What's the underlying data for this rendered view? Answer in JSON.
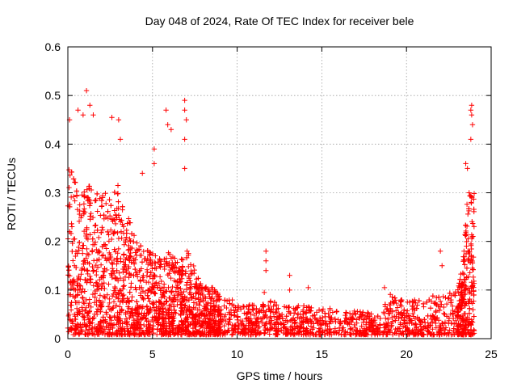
{
  "chart_data": {
    "type": "scatter",
    "title": "Day 048 of 2024, Rate Of TEC Index for receiver bele",
    "xlabel": "GPS time / hours",
    "ylabel": "ROTI / TECUs",
    "xlim": [
      0,
      25
    ],
    "ylim": [
      0,
      0.6
    ],
    "xticks": [
      0,
      5,
      10,
      15,
      20,
      25
    ],
    "yticks": [
      0,
      0.1,
      0.2,
      0.3,
      0.4,
      0.5,
      0.6
    ],
    "xtick_labels": [
      "0",
      "5",
      "10",
      "15",
      "20",
      "25"
    ],
    "ytick_labels": [
      "0",
      "0.1",
      "0.2",
      "0.3",
      "0.4",
      "0.5",
      "0.6"
    ],
    "grid": true,
    "marker": "+",
    "color": "#ff0000",
    "envelope": {
      "description": "approximate upper envelope of ROTI values vs GPS hour",
      "x": [
        0,
        0.3,
        0.6,
        1.0,
        1.3,
        1.7,
        2.0,
        2.5,
        3.0,
        3.5,
        4.0,
        4.5,
        5.0,
        5.5,
        6.0,
        6.5,
        7.0,
        7.5,
        8.0,
        8.5,
        9.0,
        10.0,
        11.0,
        12.0,
        13.0,
        14.0,
        15.0,
        16.0,
        17.0,
        18.0,
        18.5,
        19.0,
        20.0,
        21.0,
        22.0,
        23.0,
        23.3,
        23.6,
        24.0
      ],
      "y": [
        0.38,
        0.33,
        0.3,
        0.3,
        0.32,
        0.3,
        0.3,
        0.28,
        0.32,
        0.25,
        0.2,
        0.18,
        0.17,
        0.16,
        0.17,
        0.15,
        0.18,
        0.14,
        0.1,
        0.1,
        0.08,
        0.07,
        0.06,
        0.07,
        0.06,
        0.06,
        0.055,
        0.055,
        0.05,
        0.045,
        0.04,
        0.09,
        0.07,
        0.08,
        0.08,
        0.09,
        0.14,
        0.3,
        0.3
      ]
    },
    "notable_points": [
      {
        "x": 0.1,
        "y": 0.45
      },
      {
        "x": 0.6,
        "y": 0.47
      },
      {
        "x": 0.9,
        "y": 0.46
      },
      {
        "x": 1.1,
        "y": 0.51
      },
      {
        "x": 1.3,
        "y": 0.48
      },
      {
        "x": 1.5,
        "y": 0.46
      },
      {
        "x": 2.6,
        "y": 0.455
      },
      {
        "x": 3.0,
        "y": 0.45
      },
      {
        "x": 3.1,
        "y": 0.41
      },
      {
        "x": 4.4,
        "y": 0.34
      },
      {
        "x": 5.1,
        "y": 0.39
      },
      {
        "x": 5.1,
        "y": 0.36
      },
      {
        "x": 5.8,
        "y": 0.47
      },
      {
        "x": 5.9,
        "y": 0.44
      },
      {
        "x": 6.1,
        "y": 0.43
      },
      {
        "x": 6.9,
        "y": 0.49
      },
      {
        "x": 6.9,
        "y": 0.47
      },
      {
        "x": 7.0,
        "y": 0.45
      },
      {
        "x": 6.9,
        "y": 0.41
      },
      {
        "x": 6.9,
        "y": 0.35
      },
      {
        "x": 11.7,
        "y": 0.18
      },
      {
        "x": 11.7,
        "y": 0.16
      },
      {
        "x": 11.7,
        "y": 0.14
      },
      {
        "x": 11.6,
        "y": 0.095
      },
      {
        "x": 13.1,
        "y": 0.13
      },
      {
        "x": 13.1,
        "y": 0.1
      },
      {
        "x": 14.2,
        "y": 0.105
      },
      {
        "x": 18.7,
        "y": 0.105
      },
      {
        "x": 22.0,
        "y": 0.18
      },
      {
        "x": 22.1,
        "y": 0.15
      },
      {
        "x": 23.5,
        "y": 0.36
      },
      {
        "x": 23.6,
        "y": 0.35
      },
      {
        "x": 23.7,
        "y": 0.3
      },
      {
        "x": 23.8,
        "y": 0.47
      },
      {
        "x": 23.85,
        "y": 0.48
      },
      {
        "x": 23.85,
        "y": 0.46
      },
      {
        "x": 23.9,
        "y": 0.44
      },
      {
        "x": 23.8,
        "y": 0.41
      }
    ],
    "legend": "none"
  }
}
